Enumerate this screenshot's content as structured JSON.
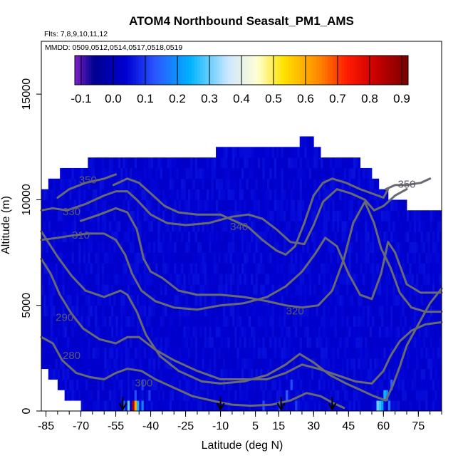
{
  "chart_data": {
    "type": "heatmap",
    "title": "ATOM4 Northbound Seasalt_PM1_AMS",
    "flights_label": "Flts: 7,8,9,10,11,12",
    "dates_label": "MMDD: 0509,0512,0514,0517,0518,0519",
    "xlabel": "Latitude (deg N)",
    "ylabel": "Altitude (m)",
    "xlim": [
      -87,
      85
    ],
    "ylim": [
      0,
      17500
    ],
    "x_ticks": [
      "-85",
      "-70",
      "-55",
      "-40",
      "-25",
      "-10",
      "5",
      "15",
      "30",
      "45",
      "60",
      "75"
    ],
    "x_tick_values": [
      -85,
      -70,
      -55,
      -40,
      -25,
      -10,
      5,
      15,
      30,
      45,
      60,
      75
    ],
    "y_ticks": [
      "0",
      "5000",
      "10000",
      "15000"
    ],
    "y_tick_values": [
      0,
      5000,
      10000,
      15000
    ],
    "colorbar": {
      "min": -0.12,
      "max": 0.92,
      "tick_labels": [
        "-0.1",
        "0.0",
        "0.1",
        "0.2",
        "0.3",
        "0.4",
        "0.5",
        "0.6",
        "0.7",
        "0.8",
        "0.9"
      ],
      "tick_values": [
        -0.1,
        0.0,
        0.1,
        0.2,
        0.3,
        0.4,
        0.5,
        0.6,
        0.7,
        0.8,
        0.9
      ],
      "colors": [
        "#7e20c8",
        "#00008f",
        "#0000d2",
        "#2a56ff",
        "#00b3ff",
        "#cfe8ff",
        "#ffffd0",
        "#ffe200",
        "#ff8a00",
        "#ff1a00",
        "#c70000",
        "#7a0000"
      ],
      "color_stops": [
        -0.12,
        -0.06,
        0.04,
        0.13,
        0.24,
        0.36,
        0.45,
        0.53,
        0.64,
        0.73,
        0.82,
        0.92
      ]
    },
    "profile_columns": [
      [
        -87,
        10000
      ],
      [
        -84,
        10600
      ],
      [
        -79,
        11000
      ],
      [
        -73,
        11500
      ],
      [
        -67,
        11500
      ],
      [
        -60,
        11900
      ],
      [
        -52,
        12000
      ],
      [
        -38,
        12000
      ],
      [
        -25,
        12000
      ],
      [
        -12,
        12000
      ],
      [
        -5,
        12500
      ],
      [
        5,
        12500
      ],
      [
        18,
        12500
      ],
      [
        24,
        12500
      ],
      [
        27,
        13000
      ],
      [
        30,
        12500
      ],
      [
        33,
        12000
      ],
      [
        40,
        12000
      ],
      [
        45,
        12000
      ],
      [
        50,
        11500
      ],
      [
        55,
        11000
      ],
      [
        58,
        10500
      ],
      [
        62,
        10000
      ],
      [
        67,
        10000
      ],
      [
        70,
        9500
      ],
      [
        72,
        9500
      ],
      [
        74,
        9500
      ],
      [
        76,
        9500
      ],
      [
        79,
        9500
      ],
      [
        82,
        9500
      ],
      [
        85,
        9500
      ]
    ],
    "profile_bottom": [
      [
        -87,
        2500
      ],
      [
        -84,
        2000
      ],
      [
        -80,
        1500
      ],
      [
        -76,
        900
      ],
      [
        -70,
        500
      ],
      [
        -62,
        400
      ],
      [
        -60,
        0
      ],
      [
        85,
        0
      ]
    ],
    "background_value": 0.04,
    "hotspots": [
      {
        "lat": -48,
        "alt": 250,
        "value": 0.85
      },
      {
        "lat": -47,
        "alt": 250,
        "value": 0.6
      },
      {
        "lat": -50,
        "alt": 250,
        "value": 0.3
      },
      {
        "lat": -46,
        "alt": 250,
        "value": 0.25
      },
      {
        "lat": -44,
        "alt": 250,
        "value": 0.18
      },
      {
        "lat": -52,
        "alt": 250,
        "value": 0.14
      },
      {
        "lat": -47,
        "alt": 750,
        "value": 0.12
      },
      {
        "lat": -41,
        "alt": 750,
        "value": 0.1
      },
      {
        "lat": -44,
        "alt": 1250,
        "value": 0.1
      },
      {
        "lat": -36,
        "alt": 5000,
        "value": -0.08
      },
      {
        "lat": -35,
        "alt": 5000,
        "value": -0.06
      },
      {
        "lat": -47,
        "alt": 6500,
        "value": 0.16
      },
      {
        "lat": -49,
        "alt": 7000,
        "value": 0.12
      },
      {
        "lat": -63,
        "alt": 2500,
        "value": 0.1
      },
      {
        "lat": -75,
        "alt": 3000,
        "value": 0.1
      },
      {
        "lat": -80,
        "alt": 3500,
        "value": 0.1
      },
      {
        "lat": 8,
        "alt": 250,
        "value": 0.12
      },
      {
        "lat": 15,
        "alt": 250,
        "value": 0.12
      },
      {
        "lat": 18,
        "alt": 750,
        "value": 0.14
      },
      {
        "lat": 20,
        "alt": 1250,
        "value": 0.12
      },
      {
        "lat": 22,
        "alt": 250,
        "value": 0.1
      },
      {
        "lat": 57,
        "alt": 250,
        "value": 0.3
      },
      {
        "lat": 58,
        "alt": 250,
        "value": 0.27
      },
      {
        "lat": 59,
        "alt": 250,
        "value": 0.22
      },
      {
        "lat": 60,
        "alt": 750,
        "value": 0.25
      },
      {
        "lat": 61,
        "alt": 750,
        "value": 0.2
      },
      {
        "lat": 62,
        "alt": 250,
        "value": 0.18
      },
      {
        "lat": 63,
        "alt": 1250,
        "value": 0.14
      },
      {
        "lat": 59,
        "alt": 9500,
        "value": 0.12
      },
      {
        "lat": -55,
        "alt": 10000,
        "value": 0.12
      }
    ],
    "contours": [
      {
        "label": "280",
        "label_at": [
          -74,
          2600
        ],
        "points": [
          [
            -87,
            3500
          ],
          [
            -82,
            3200
          ],
          [
            -78,
            2400
          ],
          [
            -72,
            1800
          ],
          [
            -66,
            1600
          ],
          [
            -60,
            1500
          ],
          [
            -55,
            1800
          ],
          [
            -50,
            2000
          ],
          [
            -44,
            1900
          ],
          [
            -38,
            1500
          ],
          [
            -30,
            1100
          ],
          [
            -22,
            700
          ],
          [
            -12,
            450
          ],
          [
            -5,
            300
          ],
          [
            3,
            250
          ],
          [
            12,
            300
          ],
          [
            20,
            500
          ],
          [
            27,
            850
          ],
          [
            33,
            700
          ],
          [
            38,
            400
          ],
          [
            43,
            150
          ]
        ]
      },
      {
        "label": "290",
        "label_at": [
          -77,
          4400
        ],
        "points": [
          [
            -87,
            7200
          ],
          [
            -83,
            6500
          ],
          [
            -79,
            5500
          ],
          [
            -74,
            4600
          ],
          [
            -69,
            3900
          ],
          [
            -62,
            3400
          ],
          [
            -55,
            3200
          ],
          [
            -50,
            3500
          ],
          [
            -45,
            3500
          ],
          [
            -38,
            2900
          ],
          [
            -30,
            2400
          ],
          [
            -20,
            1900
          ],
          [
            -10,
            1500
          ],
          [
            0,
            1500
          ],
          [
            10,
            1500
          ],
          [
            18,
            1800
          ],
          [
            25,
            2200
          ],
          [
            32,
            2000
          ],
          [
            40,
            1700
          ],
          [
            48,
            1400
          ],
          [
            55,
            1300
          ],
          [
            60,
            1900
          ],
          [
            63,
            2600
          ],
          [
            67,
            3300
          ],
          [
            72,
            3800
          ],
          [
            78,
            4100
          ],
          [
            85,
            4200
          ]
        ]
      },
      {
        "label": "300",
        "label_at": [
          -43,
          1300
        ],
        "points": [
          [
            -87,
            8500
          ],
          [
            -80,
            7300
          ],
          [
            -74,
            6400
          ],
          [
            -68,
            5700
          ],
          [
            -60,
            5400
          ],
          [
            -53,
            5700
          ],
          [
            -50,
            5500
          ],
          [
            -46,
            4700
          ],
          [
            -42,
            3600
          ],
          [
            -36,
            2600
          ],
          [
            -28,
            1900
          ],
          [
            -18,
            1400
          ],
          [
            -10,
            1300
          ],
          [
            0,
            1400
          ],
          [
            10,
            1700
          ],
          [
            18,
            2200
          ],
          [
            24,
            2700
          ],
          [
            30,
            2300
          ],
          [
            37,
            1700
          ],
          [
            44,
            1300
          ],
          [
            50,
            1000
          ],
          [
            56,
            700
          ],
          [
            61,
            500
          ],
          [
            64,
            1200
          ],
          [
            67,
            2100
          ],
          [
            70,
            3100
          ],
          [
            75,
            4100
          ],
          [
            80,
            5100
          ],
          [
            85,
            5800
          ]
        ]
      },
      {
        "label": "310",
        "label_at": [
          -70,
          8300
        ],
        "points": [
          [
            -87,
            8100
          ],
          [
            -80,
            8200
          ],
          [
            -74,
            8300
          ],
          [
            -67,
            8400
          ],
          [
            -60,
            8400
          ],
          [
            -55,
            8100
          ],
          [
            -51,
            7400
          ],
          [
            -48,
            6500
          ],
          [
            -44,
            5700
          ],
          [
            -38,
            5200
          ],
          [
            -30,
            4900
          ],
          [
            -20,
            4800
          ],
          [
            -10,
            5000
          ],
          [
            0,
            5100
          ],
          [
            10,
            5400
          ],
          [
            18,
            5900
          ],
          [
            25,
            6600
          ],
          [
            31,
            7500
          ],
          [
            35,
            8200
          ],
          [
            40,
            7800
          ],
          [
            45,
            6500
          ],
          [
            50,
            5500
          ],
          [
            55,
            5300
          ],
          [
            59,
            6500
          ],
          [
            62,
            8000
          ],
          [
            65,
            7500
          ],
          [
            70,
            6000
          ],
          [
            76,
            5600
          ],
          [
            85,
            5600
          ]
        ]
      },
      {
        "label": "320",
        "label_at": [
          22,
          4700
        ],
        "points": [
          [
            -70,
            9000
          ],
          [
            -62,
            9300
          ],
          [
            -55,
            9600
          ],
          [
            -50,
            9400
          ],
          [
            -46,
            8600
          ],
          [
            -43,
            7200
          ],
          [
            -40,
            6600
          ],
          [
            -35,
            6300
          ],
          [
            -28,
            5700
          ],
          [
            -20,
            5500
          ],
          [
            -10,
            5500
          ],
          [
            0,
            5400
          ],
          [
            10,
            5200
          ],
          [
            18,
            5000
          ],
          [
            25,
            4900
          ],
          [
            32,
            5000
          ],
          [
            38,
            5700
          ],
          [
            43,
            7200
          ],
          [
            47,
            8900
          ],
          [
            52,
            9900
          ],
          [
            56,
            8900
          ],
          [
            59,
            7700
          ],
          [
            63,
            6800
          ],
          [
            67,
            5600
          ],
          [
            72,
            4900
          ],
          [
            78,
            4700
          ],
          [
            85,
            4700
          ]
        ]
      },
      {
        "label": "330",
        "label_at": [
          -74,
          9400
        ],
        "points": [
          [
            -87,
            9500
          ],
          [
            -82,
            9600
          ],
          [
            -76,
            9500
          ],
          [
            -68,
            9800
          ],
          [
            -60,
            10200
          ],
          [
            -55,
            10400
          ],
          [
            -50,
            10400
          ],
          [
            -46,
            10000
          ],
          [
            -40,
            9300
          ],
          [
            -33,
            8900
          ],
          [
            -25,
            8800
          ],
          [
            -15,
            8900
          ],
          [
            -5,
            9200
          ],
          [
            2,
            9300
          ],
          [
            8,
            9100
          ],
          [
            14,
            8600
          ],
          [
            20,
            8000
          ],
          [
            26,
            7900
          ],
          [
            30,
            8800
          ],
          [
            34,
            9900
          ],
          [
            40,
            10500
          ],
          [
            46,
            10300
          ],
          [
            52,
            10000
          ],
          [
            56,
            9500
          ],
          [
            60,
            9700
          ],
          [
            65,
            10200
          ],
          [
            70,
            10500
          ]
        ]
      },
      {
        "label": "340",
        "label_at": [
          -2,
          8700
        ],
        "points": [
          [
            -56,
            10700
          ],
          [
            -50,
            11000
          ],
          [
            -45,
            10800
          ],
          [
            -40,
            10300
          ],
          [
            -34,
            9700
          ],
          [
            -28,
            9400
          ],
          [
            -20,
            9300
          ],
          [
            -10,
            9300
          ],
          [
            -4,
            9000
          ],
          [
            2,
            8700
          ],
          [
            8,
            8100
          ],
          [
            14,
            7600
          ],
          [
            18,
            7400
          ],
          [
            22,
            7800
          ],
          [
            26,
            8900
          ],
          [
            30,
            10200
          ],
          [
            34,
            10800
          ],
          [
            38,
            11000
          ],
          [
            44,
            10800
          ],
          [
            50,
            10500
          ],
          [
            55,
            10300
          ],
          [
            60,
            10100
          ],
          [
            62,
            10500
          ]
        ]
      },
      {
        "label": "350",
        "label_at": [
          -67,
          10900
        ],
        "points": [
          [
            -80,
            10100
          ],
          [
            -75,
            10500
          ],
          [
            -68,
            10800
          ],
          [
            -60,
            11000
          ],
          [
            -55,
            11200
          ]
        ]
      },
      {
        "label": "350",
        "label_at": [
          70,
          10700
        ],
        "points": [
          [
            61,
            10500
          ],
          [
            65,
            10700
          ],
          [
            70,
            10700
          ],
          [
            76,
            10800
          ],
          [
            80,
            11000
          ]
        ]
      }
    ],
    "flight_markers": [
      -52,
      -10,
      16,
      38
    ],
    "grid": false,
    "legend": "top colorbar"
  }
}
